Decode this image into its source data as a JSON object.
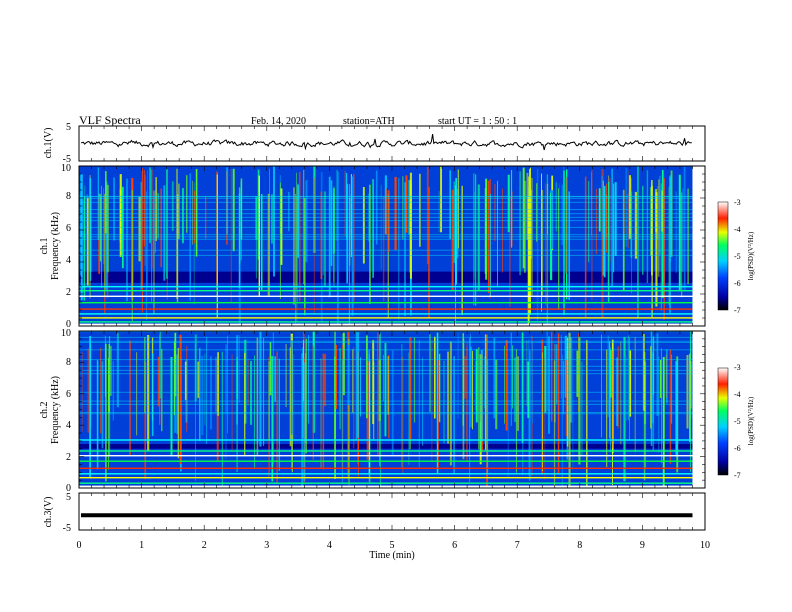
{
  "header": {
    "title": "VLF  Spectra",
    "date": "Feb. 14, 2020",
    "station": "station=ATH",
    "start": "start  UT  =    1  : 50 : 1"
  },
  "chart_data": {
    "type": "heatmap",
    "xlabel": "Time  (min)",
    "xlim": [
      0,
      10
    ],
    "xticks": [
      "0",
      "1",
      "2",
      "3",
      "4",
      "5",
      "6",
      "7",
      "8",
      "9",
      "10"
    ],
    "data_end_min": 9.8,
    "panels": [
      {
        "id": "ch1-waveform",
        "type": "line",
        "ylabel": "ch.1(V)",
        "ylim": [
          -5,
          5
        ],
        "yticks": [
          "5",
          "-5"
        ],
        "mean_level": 0,
        "amplitude": 1.2
      },
      {
        "id": "ch1-spectrogram",
        "type": "heatmap",
        "ylabel_top": "ch.1",
        "ylabel": "Frequency  (kHz)",
        "ylim": [
          0,
          10
        ],
        "yticks": [
          "0",
          "2",
          "4",
          "6",
          "8",
          "10"
        ],
        "colorbar": {
          "label": "log(PSD)(V²/Hz)",
          "range": [
            -7,
            -3
          ],
          "ticks": [
            "-3",
            "-4",
            "-5",
            "-6",
            "-7"
          ]
        },
        "band_lines_khz": [
          0.3,
          0.55,
          0.8,
          1.1,
          1.5,
          1.9,
          2.25,
          2.5
        ],
        "dark_band_khz": [
          2.7,
          3.4
        ]
      },
      {
        "id": "ch2-spectrogram",
        "type": "heatmap",
        "ylabel_top": "ch.2",
        "ylabel": "Frequency  (kHz)",
        "ylim": [
          0,
          10
        ],
        "yticks": [
          "0",
          "2",
          "4",
          "6",
          "8",
          "10"
        ],
        "colorbar": {
          "label": "log(PSD)(V²/Hz)",
          "range": [
            -7,
            -3
          ],
          "ticks": [
            "-3",
            "-4",
            "-5",
            "-6",
            "-7"
          ]
        },
        "band_lines_khz": [
          0.35,
          0.7,
          0.95,
          1.3,
          1.75,
          2.1,
          2.4,
          3.1
        ],
        "dark_band_khz": [
          2.5,
          2.8
        ]
      },
      {
        "id": "ch3-waveform",
        "type": "line",
        "ylabel": "ch.3(V)",
        "ylim": [
          -5,
          5
        ],
        "yticks": [
          "5",
          "-5"
        ],
        "mean_level": -1.0,
        "amplitude": 0
      }
    ]
  },
  "colors": {
    "cmap": [
      "#000080",
      "#0000ff",
      "#00c8ff",
      "#00ff80",
      "#ffff00",
      "#ff0000",
      "#ffffff"
    ]
  }
}
